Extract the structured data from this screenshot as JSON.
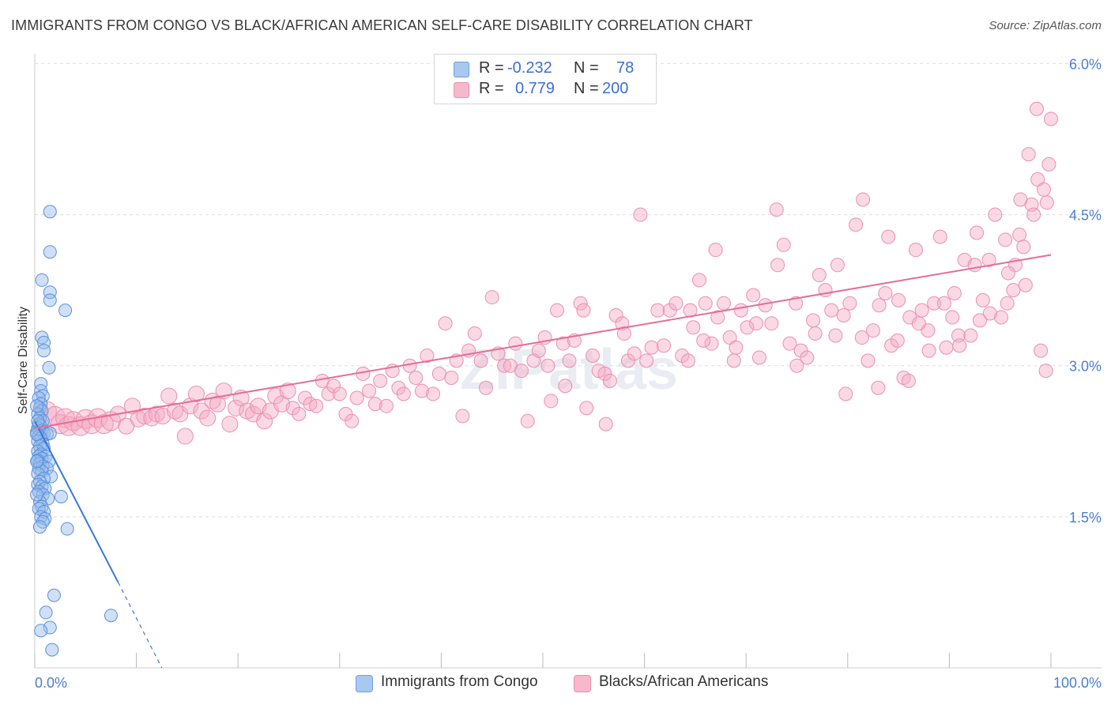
{
  "header": {
    "title": "IMMIGRANTS FROM CONGO VS BLACK/AFRICAN AMERICAN SELF-CARE DISABILITY CORRELATION CHART",
    "source": "Source: ZipAtlas.com"
  },
  "watermark": "ZIPatlas",
  "legend": {
    "rows": [
      {
        "r_label": "R =",
        "r_value": "-0.232",
        "n_label": "N =",
        "n_value": "78",
        "color": "#a8c8f0"
      },
      {
        "r_label": "R =",
        "r_value": "0.779",
        "n_label": "N =",
        "n_value": "200",
        "color": "#f7b8cb"
      }
    ]
  },
  "bottom_legend": [
    {
      "label": "Immigrants from Congo",
      "color": "#a8c8f0"
    },
    {
      "label": "Blacks/African Americans",
      "color": "#f7b8cb"
    }
  ],
  "colors": {
    "blue_fill": "rgba(148,186,236,0.45)",
    "blue_stroke": "#5b90db",
    "blue_line": "#3a78d6",
    "pink_fill": "rgba(244,170,195,0.45)",
    "pink_stroke": "#ec8fae",
    "pink_line": "#e66d96",
    "axis_text": "#4a7fd0",
    "grid": "#dddddd"
  },
  "chart_data": {
    "type": "scatter",
    "title": "IMMIGRANTS FROM CONGO VS BLACK/AFRICAN AMERICAN SELF-CARE DISABILITY CORRELATION CHART",
    "xlabel": "",
    "ylabel": "Self-Care Disability",
    "xlim": [
      0,
      100
    ],
    "ylim": [
      0,
      6.2
    ],
    "x_tick_labels": [
      "0.0%",
      "100.0%"
    ],
    "y_ticks": [
      1.5,
      3.0,
      4.5,
      6.0
    ],
    "y_tick_labels": [
      "1.5%",
      "3.0%",
      "4.5%",
      "6.0%"
    ],
    "grid": "horizontal dashed",
    "legend_placement": "top-center",
    "series": [
      {
        "name": "Immigrants from Congo",
        "R": -0.232,
        "N": 78,
        "trend": {
          "x0": 0,
          "y0": 2.45,
          "x1": 8.2,
          "y1": 0.85,
          "dashed_to_x": 12.5,
          "dashed_to_y": 0.0
        },
        "points": [
          [
            1.5,
            4.53
          ],
          [
            1.5,
            4.13
          ],
          [
            0.7,
            3.85
          ],
          [
            1.5,
            3.73
          ],
          [
            1.5,
            3.65
          ],
          [
            3.0,
            3.55
          ],
          [
            0.7,
            3.28
          ],
          [
            0.9,
            3.23
          ],
          [
            0.9,
            3.15
          ],
          [
            1.4,
            2.98
          ],
          [
            0.6,
            2.82
          ],
          [
            0.6,
            2.75
          ],
          [
            0.8,
            2.7
          ],
          [
            0.4,
            2.68
          ],
          [
            0.6,
            2.62
          ],
          [
            0.5,
            2.58
          ],
          [
            0.7,
            2.55
          ],
          [
            0.3,
            2.52
          ],
          [
            0.5,
            2.48
          ],
          [
            0.8,
            2.45
          ],
          [
            0.4,
            2.42
          ],
          [
            0.6,
            2.4
          ],
          [
            0.3,
            2.38
          ],
          [
            0.7,
            2.36
          ],
          [
            0.5,
            2.35
          ],
          [
            0.2,
            2.34
          ],
          [
            0.9,
            2.33
          ],
          [
            1.2,
            2.32
          ],
          [
            1.5,
            2.33
          ],
          [
            0.4,
            2.3
          ],
          [
            0.6,
            2.28
          ],
          [
            0.3,
            2.25
          ],
          [
            0.8,
            2.22
          ],
          [
            0.5,
            2.2
          ],
          [
            0.9,
            2.18
          ],
          [
            0.3,
            2.15
          ],
          [
            0.6,
            2.12
          ],
          [
            0.4,
            2.1
          ],
          [
            1.1,
            2.1
          ],
          [
            0.7,
            2.08
          ],
          [
            0.3,
            2.06
          ],
          [
            1.4,
            2.05
          ],
          [
            0.5,
            2.03
          ],
          [
            0.8,
            2.0
          ],
          [
            0.4,
            1.98
          ],
          [
            1.2,
            1.98
          ],
          [
            0.7,
            1.95
          ],
          [
            0.3,
            1.93
          ],
          [
            1.6,
            1.9
          ],
          [
            0.9,
            1.88
          ],
          [
            0.5,
            1.85
          ],
          [
            0.3,
            1.82
          ],
          [
            0.7,
            1.8
          ],
          [
            1.0,
            1.78
          ],
          [
            0.4,
            1.75
          ],
          [
            0.8,
            1.72
          ],
          [
            2.6,
            1.7
          ],
          [
            1.3,
            1.68
          ],
          [
            0.5,
            1.65
          ],
          [
            0.7,
            1.6
          ],
          [
            0.4,
            1.58
          ],
          [
            0.9,
            1.55
          ],
          [
            0.6,
            1.5
          ],
          [
            1.0,
            1.48
          ],
          [
            0.8,
            1.45
          ],
          [
            0.5,
            1.4
          ],
          [
            3.2,
            1.38
          ],
          [
            1.9,
            0.72
          ],
          [
            1.1,
            0.55
          ],
          [
            7.5,
            0.52
          ],
          [
            1.5,
            0.4
          ],
          [
            0.6,
            0.37
          ],
          [
            1.7,
            0.18
          ],
          [
            0.2,
            2.6
          ],
          [
            0.3,
            2.45
          ],
          [
            0.2,
            2.32
          ],
          [
            0.2,
            2.05
          ],
          [
            0.2,
            1.72
          ]
        ]
      },
      {
        "name": "Blacks/African Americans",
        "R": 0.779,
        "N": 200,
        "trend": {
          "x0": 0,
          "y0": 2.38,
          "x1": 100,
          "y1": 4.1
        },
        "points": [
          [
            1.2,
            2.55
          ],
          [
            2.0,
            2.5
          ],
          [
            2.5,
            2.42
          ],
          [
            3.0,
            2.48
          ],
          [
            3.3,
            2.4
          ],
          [
            3.8,
            2.45
          ],
          [
            4.5,
            2.4
          ],
          [
            5.0,
            2.47
          ],
          [
            5.6,
            2.42
          ],
          [
            6.2,
            2.48
          ],
          [
            6.8,
            2.42
          ],
          [
            7.5,
            2.45
          ],
          [
            8.2,
            2.52
          ],
          [
            9.0,
            2.4
          ],
          [
            9.6,
            2.6
          ],
          [
            10.2,
            2.47
          ],
          [
            10.8,
            2.5
          ],
          [
            11.5,
            2.48
          ],
          [
            12.0,
            2.52
          ],
          [
            12.6,
            2.5
          ],
          [
            13.2,
            2.7
          ],
          [
            13.8,
            2.55
          ],
          [
            14.3,
            2.52
          ],
          [
            14.8,
            2.3
          ],
          [
            15.3,
            2.6
          ],
          [
            15.9,
            2.72
          ],
          [
            16.4,
            2.55
          ],
          [
            17.0,
            2.48
          ],
          [
            17.5,
            2.65
          ],
          [
            18.0,
            2.62
          ],
          [
            18.6,
            2.75
          ],
          [
            19.2,
            2.42
          ],
          [
            19.8,
            2.58
          ],
          [
            20.3,
            2.68
          ],
          [
            20.9,
            2.55
          ],
          [
            21.5,
            2.52
          ],
          [
            22.0,
            2.6
          ],
          [
            22.6,
            2.45
          ],
          [
            23.2,
            2.55
          ],
          [
            23.7,
            2.7
          ],
          [
            24.3,
            2.62
          ],
          [
            24.9,
            2.75
          ],
          [
            25.4,
            2.58
          ],
          [
            26.0,
            2.52
          ],
          [
            26.6,
            2.68
          ],
          [
            27.1,
            2.62
          ],
          [
            27.7,
            2.6
          ],
          [
            28.3,
            2.85
          ],
          [
            28.9,
            2.72
          ],
          [
            29.4,
            2.8
          ],
          [
            30.0,
            2.72
          ],
          [
            30.6,
            2.52
          ],
          [
            31.2,
            2.45
          ],
          [
            31.7,
            2.68
          ],
          [
            32.3,
            2.92
          ],
          [
            32.9,
            2.75
          ],
          [
            33.5,
            2.62
          ],
          [
            34.0,
            2.85
          ],
          [
            34.6,
            2.6
          ],
          [
            35.2,
            2.95
          ],
          [
            35.8,
            2.78
          ],
          [
            36.3,
            2.72
          ],
          [
            36.9,
            3.0
          ],
          [
            37.5,
            2.88
          ],
          [
            38.1,
            2.75
          ],
          [
            38.6,
            3.1
          ],
          [
            39.2,
            2.72
          ],
          [
            39.8,
            2.92
          ],
          [
            40.4,
            3.42
          ],
          [
            41.0,
            2.88
          ],
          [
            41.5,
            3.05
          ],
          [
            42.1,
            2.5
          ],
          [
            42.7,
            3.15
          ],
          [
            43.3,
            3.32
          ],
          [
            43.9,
            3.05
          ],
          [
            44.4,
            2.78
          ],
          [
            45.0,
            3.68
          ],
          [
            45.6,
            3.12
          ],
          [
            46.2,
            3.0
          ],
          [
            46.8,
            3.0
          ],
          [
            47.3,
            3.22
          ],
          [
            47.9,
            2.95
          ],
          [
            48.5,
            2.45
          ],
          [
            49.1,
            3.05
          ],
          [
            49.6,
            3.15
          ],
          [
            50.2,
            3.28
          ],
          [
            50.8,
            2.65
          ],
          [
            51.4,
            3.55
          ],
          [
            52.0,
            3.22
          ],
          [
            52.6,
            3.05
          ],
          [
            53.1,
            3.25
          ],
          [
            53.7,
            3.62
          ],
          [
            54.3,
            2.58
          ],
          [
            54.9,
            3.1
          ],
          [
            55.5,
            2.95
          ],
          [
            56.1,
            2.92
          ],
          [
            56.6,
            2.85
          ],
          [
            57.2,
            3.5
          ],
          [
            57.8,
            3.42
          ],
          [
            58.4,
            3.05
          ],
          [
            59.0,
            3.12
          ],
          [
            59.6,
            4.5
          ],
          [
            60.2,
            3.05
          ],
          [
            60.7,
            3.18
          ],
          [
            61.3,
            3.55
          ],
          [
            61.9,
            3.2
          ],
          [
            62.5,
            3.55
          ],
          [
            63.1,
            3.62
          ],
          [
            63.7,
            3.1
          ],
          [
            64.3,
            3.05
          ],
          [
            64.8,
            3.38
          ],
          [
            65.4,
            3.85
          ],
          [
            66.0,
            3.62
          ],
          [
            66.6,
            3.22
          ],
          [
            67.2,
            3.48
          ],
          [
            67.8,
            3.62
          ],
          [
            68.4,
            3.28
          ],
          [
            69.0,
            3.18
          ],
          [
            69.5,
            3.55
          ],
          [
            70.1,
            3.38
          ],
          [
            70.7,
            3.7
          ],
          [
            71.3,
            3.08
          ],
          [
            71.9,
            3.6
          ],
          [
            72.5,
            3.42
          ],
          [
            73.1,
            4.0
          ],
          [
            73.7,
            4.2
          ],
          [
            74.3,
            3.22
          ],
          [
            74.9,
            3.62
          ],
          [
            75.4,
            3.15
          ],
          [
            76.0,
            3.08
          ],
          [
            76.6,
            3.45
          ],
          [
            77.2,
            3.9
          ],
          [
            77.8,
            3.75
          ],
          [
            78.4,
            3.55
          ],
          [
            79.0,
            4.0
          ],
          [
            79.6,
            3.5
          ],
          [
            80.2,
            3.62
          ],
          [
            80.8,
            4.4
          ],
          [
            81.4,
            3.28
          ],
          [
            82.0,
            3.05
          ],
          [
            82.5,
            3.35
          ],
          [
            83.1,
            3.6
          ],
          [
            83.7,
            3.72
          ],
          [
            84.3,
            3.2
          ],
          [
            84.9,
            3.25
          ],
          [
            85.5,
            2.88
          ],
          [
            86.1,
            3.48
          ],
          [
            86.7,
            4.15
          ],
          [
            87.3,
            3.55
          ],
          [
            87.9,
            3.35
          ],
          [
            88.5,
            3.62
          ],
          [
            89.1,
            4.28
          ],
          [
            89.7,
            3.18
          ],
          [
            90.3,
            3.48
          ],
          [
            90.9,
            3.3
          ],
          [
            91.5,
            4.05
          ],
          [
            92.1,
            3.3
          ],
          [
            92.7,
            4.32
          ],
          [
            93.3,
            3.65
          ],
          [
            93.9,
            4.05
          ],
          [
            94.5,
            4.5
          ],
          [
            95.1,
            3.48
          ],
          [
            95.7,
            3.62
          ],
          [
            96.3,
            3.75
          ],
          [
            96.9,
            4.3
          ],
          [
            97.5,
            3.8
          ],
          [
            98.1,
            4.6
          ],
          [
            98.7,
            4.85
          ],
          [
            99.3,
            4.75
          ],
          [
            99.8,
            5.0
          ],
          [
            64.5,
            3.55
          ],
          [
            67.0,
            4.15
          ],
          [
            75.0,
            3.0
          ],
          [
            78.8,
            3.3
          ],
          [
            81.5,
            4.65
          ],
          [
            84.0,
            4.28
          ],
          [
            86.0,
            2.85
          ],
          [
            88.0,
            3.15
          ],
          [
            90.5,
            3.72
          ],
          [
            92.5,
            4.0
          ],
          [
            94.0,
            3.52
          ],
          [
            95.5,
            4.25
          ],
          [
            96.5,
            4.0
          ],
          [
            97.0,
            4.65
          ],
          [
            97.8,
            5.1
          ],
          [
            98.3,
            4.5
          ],
          [
            99.0,
            3.15
          ],
          [
            99.5,
            2.95
          ],
          [
            100.0,
            5.45
          ],
          [
            98.6,
            5.55
          ],
          [
            65.8,
            3.25
          ],
          [
            68.8,
            3.05
          ],
          [
            71.0,
            3.42
          ],
          [
            73.0,
            4.55
          ],
          [
            76.8,
            3.32
          ],
          [
            79.8,
            2.72
          ],
          [
            83.0,
            2.78
          ],
          [
            85.0,
            3.65
          ],
          [
            87.0,
            3.42
          ],
          [
            89.5,
            3.62
          ],
          [
            91.0,
            3.2
          ],
          [
            93.0,
            3.45
          ],
          [
            95.8,
            3.92
          ],
          [
            97.3,
            4.18
          ],
          [
            99.6,
            4.62
          ],
          [
            58.0,
            3.32
          ],
          [
            56.2,
            2.42
          ],
          [
            54.0,
            3.55
          ],
          [
            52.2,
            2.8
          ],
          [
            50.5,
            3.0
          ]
        ]
      }
    ]
  }
}
